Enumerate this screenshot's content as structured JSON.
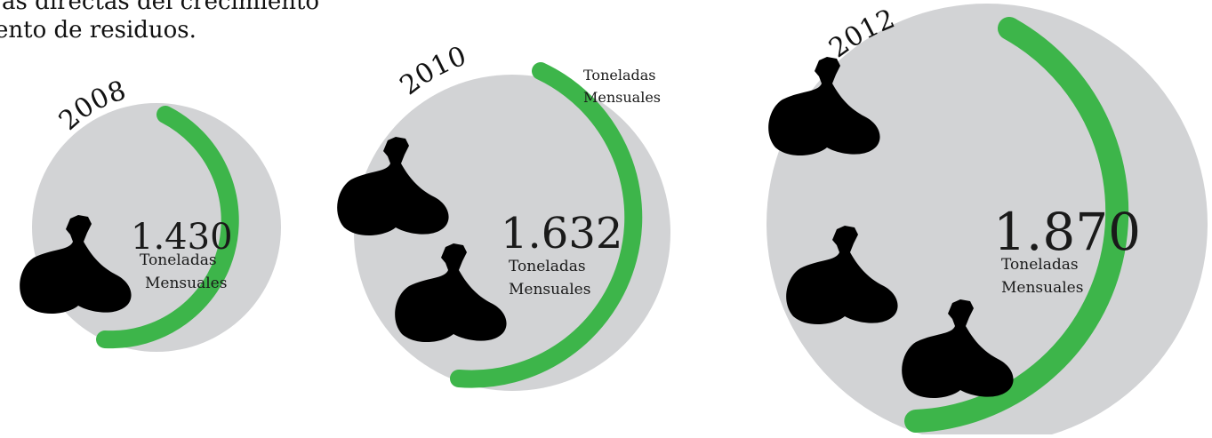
{
  "intro": {
    "line1": "as directas del crecimiento",
    "line2": "ento de residuos."
  },
  "unit_line1": "Toneladas",
  "unit_line2": "Mensuales",
  "colors": {
    "circle": "#d2d3d5",
    "arc": "#3db54a",
    "bag": "#000000",
    "text": "#1a1a1a"
  },
  "items": [
    {
      "year": "2008",
      "value": "1.430",
      "bags": 1
    },
    {
      "year": "2010",
      "value": "1.632",
      "bags": 2
    },
    {
      "year": "2012",
      "value": "1.870",
      "bags": 3
    }
  ]
}
